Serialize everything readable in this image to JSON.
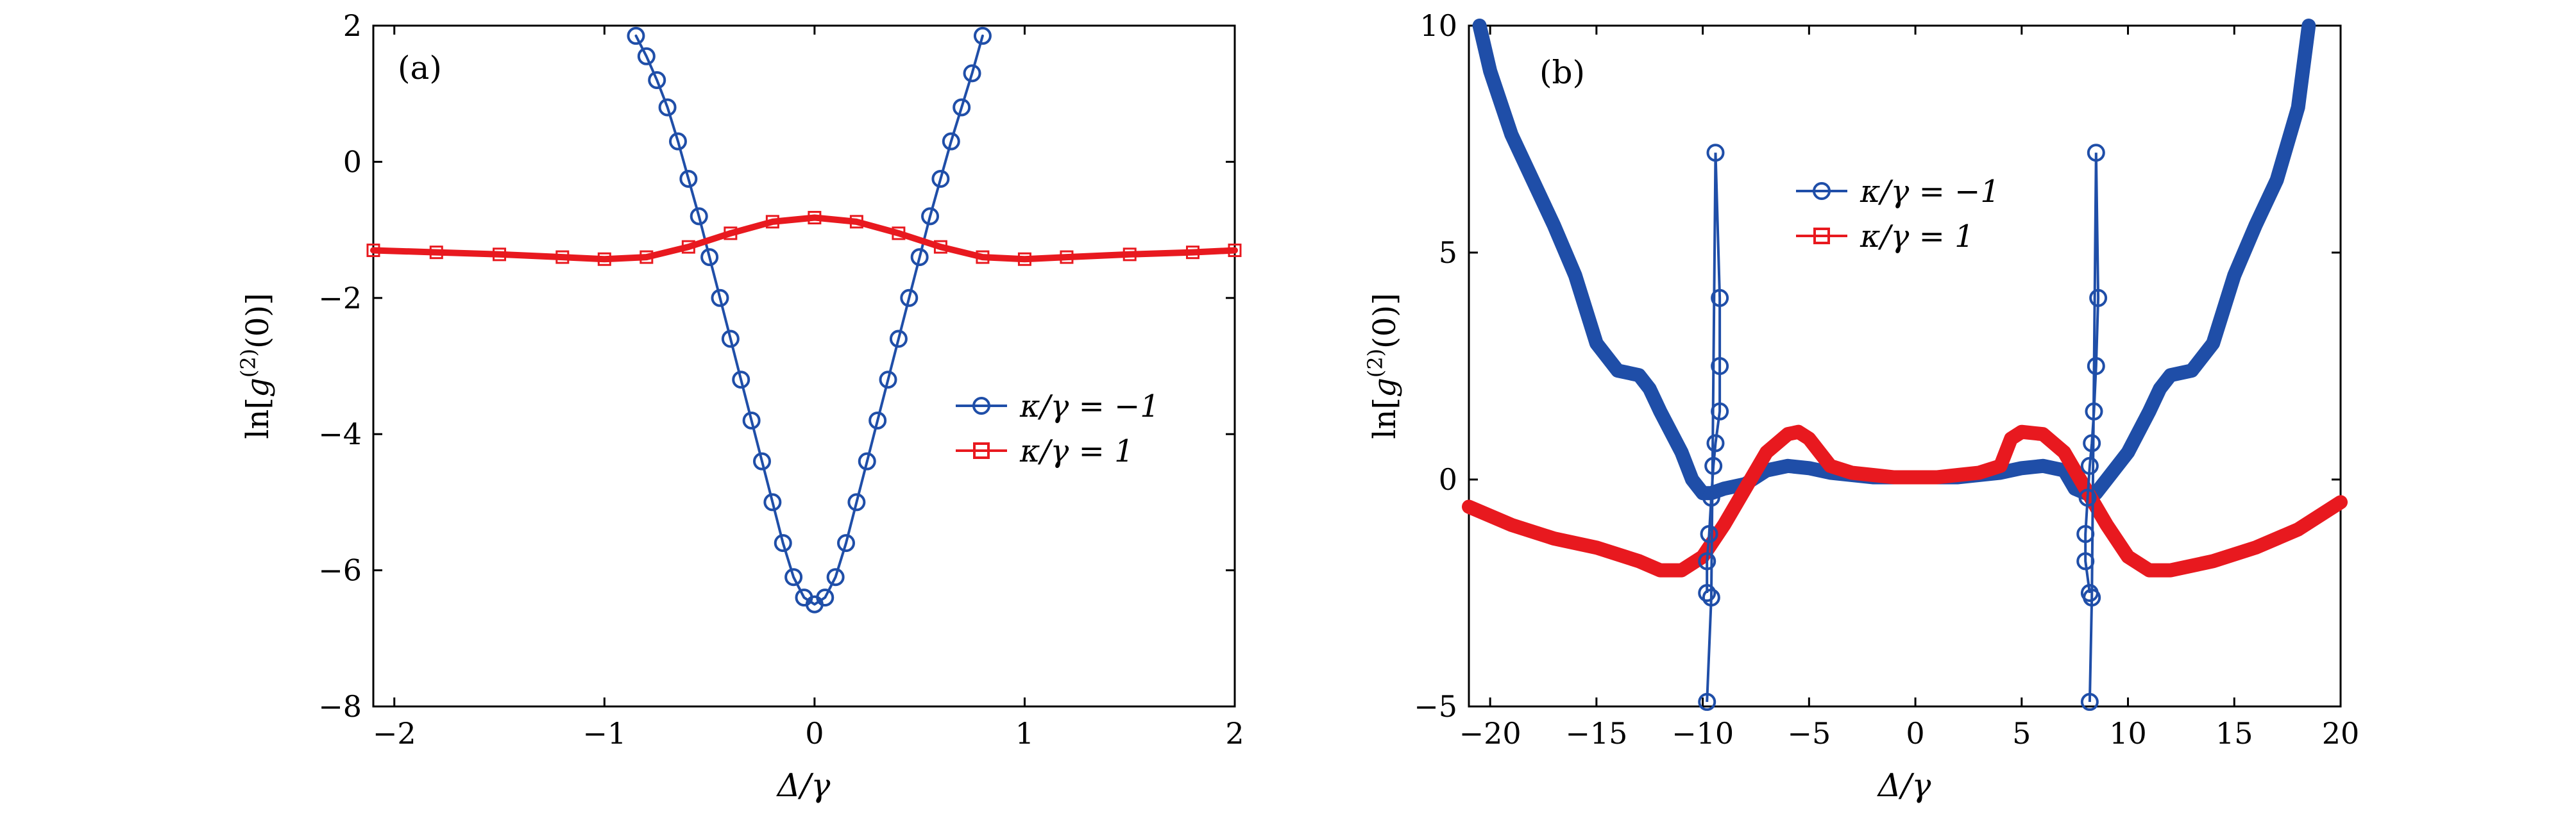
{
  "colors": {
    "series1": "#1f4ea8",
    "series2": "#e8191f",
    "axis": "#000000",
    "background": "#ffffff"
  },
  "chart_data": [
    {
      "type": "line",
      "panel_label": "(a)",
      "xlabel": "Δ/γ",
      "ylabel": "ln[g(2)(0)]",
      "xlim": [
        -2.1,
        2
      ],
      "ylim": [
        -8,
        2
      ],
      "xticks": [
        "−2",
        "−1",
        "0",
        "1",
        "2"
      ],
      "yticks": [
        "−8",
        "−6",
        "−4",
        "−2",
        "0",
        "2"
      ],
      "grid": false,
      "legend_position": "right-middle",
      "series": [
        {
          "name": "κ/γ = −1",
          "marker": "circle",
          "x": [
            -0.85,
            -0.8,
            -0.75,
            -0.7,
            -0.65,
            -0.6,
            -0.55,
            -0.5,
            -0.45,
            -0.4,
            -0.35,
            -0.3,
            -0.25,
            -0.2,
            -0.15,
            -0.1,
            -0.05,
            0,
            0.05,
            0.1,
            0.15,
            0.2,
            0.25,
            0.3,
            0.35,
            0.4,
            0.45,
            0.5,
            0.55,
            0.6,
            0.65,
            0.7,
            0.75,
            0.8
          ],
          "y": [
            1.85,
            1.55,
            1.2,
            0.8,
            0.3,
            -0.25,
            -0.8,
            -1.4,
            -2.0,
            -2.6,
            -3.2,
            -3.8,
            -4.4,
            -5.0,
            -5.6,
            -6.1,
            -6.4,
            -6.5,
            -6.4,
            -6.1,
            -5.6,
            -5.0,
            -4.4,
            -3.8,
            -3.2,
            -2.6,
            -2.0,
            -1.4,
            -0.8,
            -0.25,
            0.3,
            0.8,
            1.3,
            1.85
          ]
        },
        {
          "name": "κ/γ = 1",
          "marker": "square",
          "x": [
            -2.1,
            -1.8,
            -1.5,
            -1.2,
            -1.0,
            -0.8,
            -0.6,
            -0.4,
            -0.2,
            0,
            0.2,
            0.4,
            0.6,
            0.8,
            1.0,
            1.2,
            1.5,
            1.8,
            2.0
          ],
          "y": [
            -1.3,
            -1.33,
            -1.36,
            -1.4,
            -1.43,
            -1.4,
            -1.25,
            -1.05,
            -0.88,
            -0.82,
            -0.88,
            -1.05,
            -1.25,
            -1.4,
            -1.43,
            -1.4,
            -1.36,
            -1.33,
            -1.3
          ]
        }
      ]
    },
    {
      "type": "line",
      "panel_label": "(b)",
      "xlabel": "Δ/γ",
      "ylabel": "ln[g(2)(0)]",
      "xlim": [
        -21,
        20
      ],
      "ylim": [
        -5,
        10
      ],
      "xticks": [
        "−20",
        "−15",
        "−10",
        "−5",
        "0",
        "5",
        "10",
        "15",
        "20"
      ],
      "yticks": [
        "−5",
        "0",
        "5",
        "10"
      ],
      "grid": false,
      "legend_position": "top-middle",
      "series": [
        {
          "name": "κ/γ = −1",
          "marker": "circle",
          "x": [
            -20.5,
            -20,
            -19,
            -18,
            -17,
            -16,
            -15,
            -14,
            -13,
            -12.5,
            -12,
            -11,
            -10.5,
            -10,
            -9.6,
            -9,
            -8,
            -7,
            -6,
            -5,
            -4,
            -3,
            -2,
            -1,
            0,
            1,
            2,
            3,
            4,
            5,
            6,
            7,
            7.5,
            8,
            8.5,
            9,
            10,
            11,
            11.5,
            12,
            13,
            14,
            15,
            16,
            17,
            18,
            18.5
          ],
          "y": [
            10,
            9.0,
            7.6,
            6.6,
            5.6,
            4.5,
            3.0,
            2.4,
            2.3,
            2.0,
            1.5,
            0.6,
            0.0,
            -0.3,
            -0.3,
            -0.2,
            -0.1,
            0.2,
            0.3,
            0.25,
            0.15,
            0.1,
            0.05,
            0.05,
            0.05,
            0.05,
            0.05,
            0.1,
            0.15,
            0.25,
            0.3,
            0.2,
            -0.2,
            -0.3,
            -0.3,
            0.0,
            0.6,
            1.5,
            2.0,
            2.3,
            2.4,
            3.0,
            4.5,
            5.6,
            6.6,
            8.2,
            10
          ]
        },
        {
          "name": "κ/γ = 1",
          "marker": "square",
          "x": [
            -21,
            -19,
            -17,
            -15,
            -13,
            -12,
            -11,
            -10,
            -9,
            -8,
            -7,
            -6,
            -5.5,
            -5,
            -4,
            -3,
            -2,
            -1,
            0,
            1,
            2,
            3,
            4,
            4.5,
            5,
            6,
            7,
            8,
            9,
            10,
            11,
            12,
            14,
            16,
            18,
            20
          ],
          "y": [
            -0.6,
            -1.0,
            -1.3,
            -1.5,
            -1.8,
            -2.0,
            -2.0,
            -1.7,
            -1.0,
            -0.2,
            0.6,
            1.0,
            1.05,
            0.9,
            0.3,
            0.15,
            0.1,
            0.05,
            0.05,
            0.05,
            0.1,
            0.15,
            0.3,
            0.9,
            1.05,
            1.0,
            0.6,
            -0.2,
            -1.0,
            -1.7,
            -2.0,
            -2.0,
            -1.8,
            -1.5,
            -1.1,
            -0.5
          ]
        }
      ],
      "spikes": [
        {
          "x": [
            -9.8,
            -9.6,
            -9.4,
            -9.2,
            -9.2,
            -9.2,
            -9.4,
            -9.5,
            -9.6,
            -9.7,
            -9.8,
            -9.8
          ],
          "y": [
            -4.9,
            -2.6,
            7.2,
            4.0,
            2.5,
            1.5,
            0.8,
            0.3,
            -0.4,
            -1.2,
            -1.8,
            -2.5
          ]
        },
        {
          "x": [
            8.2,
            8.3,
            8.5,
            8.6,
            8.5,
            8.4,
            8.3,
            8.2,
            8.1,
            8.0,
            8.0,
            8.2
          ],
          "y": [
            -4.9,
            -2.6,
            7.2,
            4.0,
            2.5,
            1.5,
            0.8,
            0.3,
            -0.4,
            -1.2,
            -1.8,
            -2.5
          ]
        }
      ]
    }
  ]
}
